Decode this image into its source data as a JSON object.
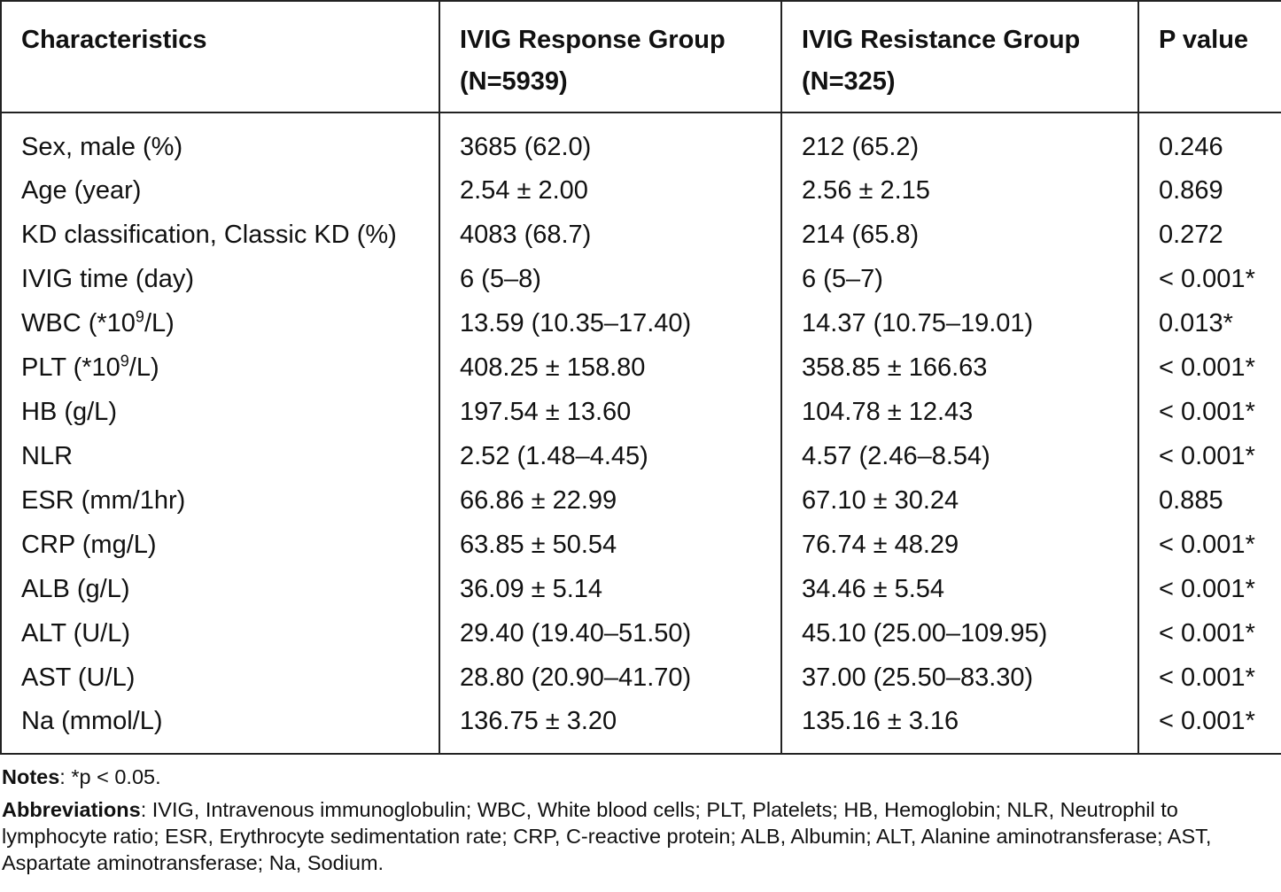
{
  "table": {
    "headers": [
      {
        "line1": "Characteristics",
        "line2": ""
      },
      {
        "line1": "IVIG Response Group",
        "line2": "(N=5939)"
      },
      {
        "line1": "IVIG Resistance Group",
        "line2": "(N=325)"
      },
      {
        "line1": "P value",
        "line2": ""
      }
    ],
    "rows": [
      {
        "label": "Sex, male (%)",
        "sup": "",
        "label_suffix": "",
        "response": "3685 (62.0)",
        "resistance": "212 (65.2)",
        "p": "0.246"
      },
      {
        "label": "Age (year)",
        "sup": "",
        "label_suffix": "",
        "response": "2.54 ± 2.00",
        "resistance": "2.56 ± 2.15",
        "p": "0.869"
      },
      {
        "label": "KD classification, Classic KD (%)",
        "sup": "",
        "label_suffix": "",
        "response": "4083 (68.7)",
        "resistance": "214 (65.8)",
        "p": "0.272"
      },
      {
        "label": "IVIG time (day)",
        "sup": "",
        "label_suffix": "",
        "response": "6 (5–8)",
        "resistance": "6 (5–7)",
        "p": "< 0.001*"
      },
      {
        "label": "WBC (*10",
        "sup": "9",
        "label_suffix": "/L)",
        "response": "13.59 (10.35–17.40)",
        "resistance": "14.37 (10.75–19.01)",
        "p": "0.013*"
      },
      {
        "label": "PLT (*10",
        "sup": "9",
        "label_suffix": "/L)",
        "response": "408.25 ± 158.80",
        "resistance": "358.85 ± 166.63",
        "p": "< 0.001*"
      },
      {
        "label": "HB (g/L)",
        "sup": "",
        "label_suffix": "",
        "response": "197.54 ± 13.60",
        "resistance": "104.78 ± 12.43",
        "p": "< 0.001*"
      },
      {
        "label": "NLR",
        "sup": "",
        "label_suffix": "",
        "response": "2.52 (1.48–4.45)",
        "resistance": "4.57 (2.46–8.54)",
        "p": "< 0.001*"
      },
      {
        "label": "ESR (mm/1hr)",
        "sup": "",
        "label_suffix": "",
        "response": "66.86 ± 22.99",
        "resistance": "67.10 ± 30.24",
        "p": "0.885"
      },
      {
        "label": "CRP (mg/L)",
        "sup": "",
        "label_suffix": "",
        "response": "63.85 ± 50.54",
        "resistance": "76.74 ± 48.29",
        "p": "< 0.001*"
      },
      {
        "label": "ALB (g/L)",
        "sup": "",
        "label_suffix": "",
        "response": "36.09 ± 5.14",
        "resistance": "34.46 ± 5.54",
        "p": "< 0.001*"
      },
      {
        "label": "ALT (U/L)",
        "sup": "",
        "label_suffix": "",
        "response": "29.40 (19.40–51.50)",
        "resistance": "45.10 (25.00–109.95)",
        "p": "< 0.001*"
      },
      {
        "label": "AST (U/L)",
        "sup": "",
        "label_suffix": "",
        "response": "28.80 (20.90–41.70)",
        "resistance": "37.00 (25.50–83.30)",
        "p": "< 0.001*"
      },
      {
        "label": "Na (mmol/L)",
        "sup": "",
        "label_suffix": "",
        "response": "136.75 ± 3.20",
        "resistance": "135.16 ± 3.16",
        "p": "< 0.001*"
      }
    ]
  },
  "notes": {
    "notes_label": "Notes",
    "notes_text": ": *p < 0.05.",
    "abbr_label": "Abbreviations",
    "abbr_text": ": IVIG, Intravenous immunoglobulin; WBC, White blood cells; PLT, Platelets; HB, Hemoglobin; NLR, Neutrophil to lymphocyte ratio; ESR, Erythrocyte sedimentation rate; CRP, C-reactive protein; ALB, Albumin; ALT, Alanine aminotransferase; AST, Aspartate aminotransferase; Na, Sodium."
  }
}
